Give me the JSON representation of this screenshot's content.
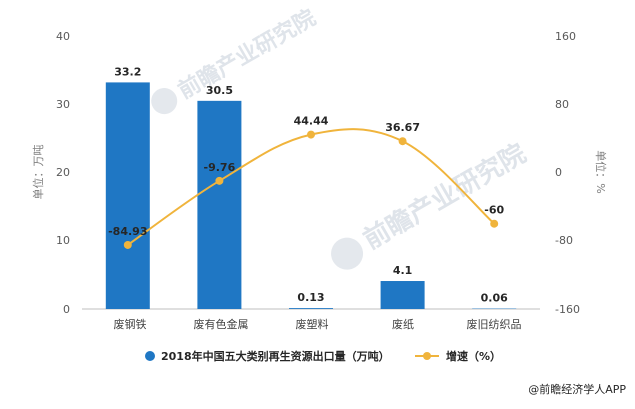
{
  "chart_data": {
    "type": "bar+line",
    "categories": [
      "废钢铁",
      "废有色金属",
      "废塑料",
      "废纸",
      "废旧纺织品"
    ],
    "series": [
      {
        "name": "2018年中国五大类别再生资源出口量（万吨）",
        "type": "bar",
        "axis": "left",
        "values": [
          33.2,
          30.5,
          0.13,
          4.1,
          0.06
        ],
        "labels": [
          "33.2",
          "30.5",
          "0.13",
          "4.1",
          "0.06"
        ],
        "color": "#1f77c4"
      },
      {
        "name": "增速（%）",
        "type": "line",
        "axis": "right",
        "values": [
          -84.93,
          -9.76,
          44.44,
          36.67,
          -60
        ],
        "labels": [
          "-84.93",
          "-9.76",
          "44.44",
          "36.67",
          "-60"
        ],
        "color": "#f0b43c"
      }
    ],
    "y_left": {
      "label": "单位：万吨",
      "range": [
        0,
        40
      ],
      "ticks": [
        "0",
        "10",
        "20",
        "30",
        "40"
      ]
    },
    "y_right": {
      "label": "单位：%",
      "range": [
        -160,
        160
      ],
      "ticks": [
        "-160",
        "-80",
        "0",
        "80",
        "160"
      ]
    },
    "grid": false,
    "legend_position": "bottom-center"
  },
  "watermark": {
    "brand": "前瞻产业研究院"
  },
  "footer": {
    "credit": "@前瞻经济学人APP"
  }
}
